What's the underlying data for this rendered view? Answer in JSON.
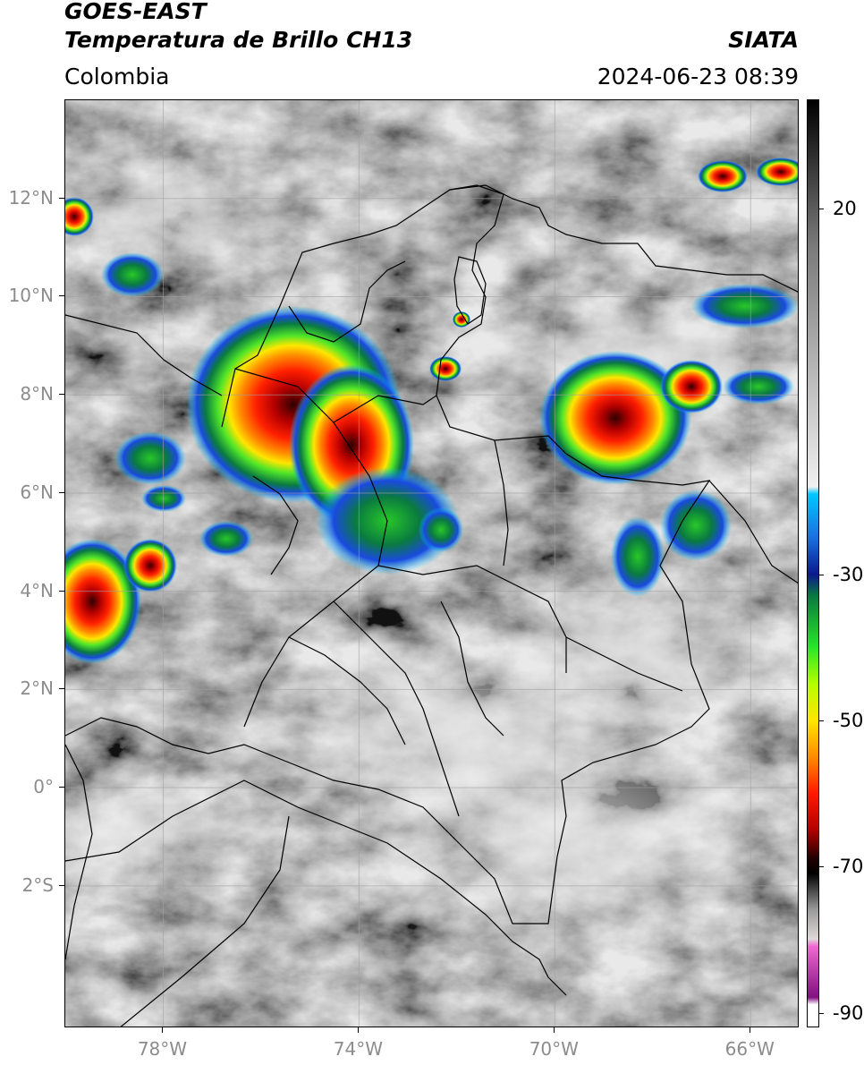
{
  "header": {
    "satellite": "GOES-EAST",
    "product": "Temperatura de Brillo CH13",
    "brand": "SIATA",
    "region": "Colombia",
    "timestamp": "2024-06-23 08:39"
  },
  "map": {
    "extent": {
      "lon_min": -80.0,
      "lon_max": -65.0,
      "lat_min": -4.9,
      "lat_max": 14.0
    },
    "lat_ticks": [
      {
        "value": 12,
        "label": "12°N"
      },
      {
        "value": 10,
        "label": "10°N"
      },
      {
        "value": 8,
        "label": "8°N"
      },
      {
        "value": 6,
        "label": "6°N"
      },
      {
        "value": 4,
        "label": "4°N"
      },
      {
        "value": 2,
        "label": "2°N"
      },
      {
        "value": 0,
        "label": "0°"
      },
      {
        "value": -2,
        "label": "2°S"
      }
    ],
    "lon_ticks": [
      {
        "value": -78,
        "label": "78°W"
      },
      {
        "value": -74,
        "label": "74°W"
      },
      {
        "value": -70,
        "label": "70°W"
      },
      {
        "value": -66,
        "label": "66°W"
      }
    ],
    "gridlines": true,
    "colors": {
      "gridline": "#a0a0a0",
      "border": "#000000",
      "label": "#8c8c8c"
    }
  },
  "colorbar": {
    "unit_range": [
      -92,
      35
    ],
    "ticks": [
      {
        "value": 20,
        "label": "20"
      },
      {
        "value": -30,
        "label": "-30"
      },
      {
        "value": -50,
        "label": "-50"
      },
      {
        "value": -70,
        "label": "-70"
      },
      {
        "value": -90,
        "label": "-90"
      }
    ],
    "stops": [
      {
        "value": 35,
        "color": "#000000"
      },
      {
        "value": 15,
        "color": "#7a7a7a"
      },
      {
        "value": -18,
        "color": "#f0f0f0"
      },
      {
        "value": -19,
        "color": "#00c8ff"
      },
      {
        "value": -25,
        "color": "#1a6fe0"
      },
      {
        "value": -30,
        "color": "#0a1a8c"
      },
      {
        "value": -33,
        "color": "#0a7a40"
      },
      {
        "value": -40,
        "color": "#28e628"
      },
      {
        "value": -45,
        "color": "#b4ff00"
      },
      {
        "value": -50,
        "color": "#ffe600"
      },
      {
        "value": -55,
        "color": "#ff8c00"
      },
      {
        "value": -60,
        "color": "#ff1a00"
      },
      {
        "value": -65,
        "color": "#b40000"
      },
      {
        "value": -69,
        "color": "#200000"
      },
      {
        "value": -71,
        "color": "#000000"
      },
      {
        "value": -76,
        "color": "#9a9a9a"
      },
      {
        "value": -80,
        "color": "#e0d8d8"
      },
      {
        "value": -81,
        "color": "#f068d0"
      },
      {
        "value": -88,
        "color": "#801080"
      },
      {
        "value": -89,
        "color": "#ffffff"
      },
      {
        "value": -92,
        "color": "#ffffff"
      }
    ]
  }
}
